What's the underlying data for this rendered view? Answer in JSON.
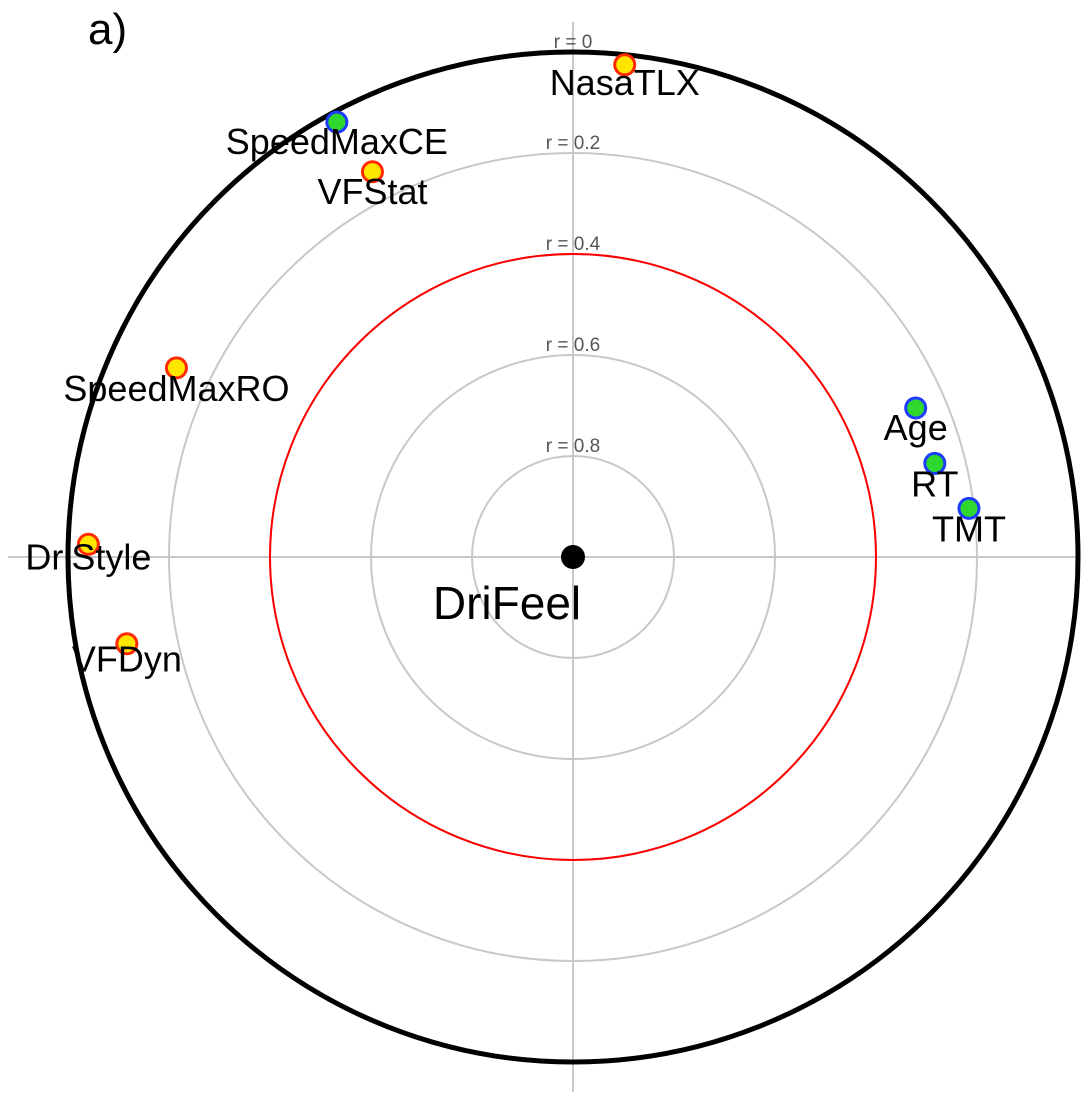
{
  "panel_label": "a)",
  "chart_data": {
    "type": "scatter",
    "center_label": "DriFeel",
    "ring_labels": [
      {
        "r": 0,
        "text": "r = 0"
      },
      {
        "r": 0.2,
        "text": "r = 0.2"
      },
      {
        "r": 0.4,
        "text": "r = 0.4"
      },
      {
        "r": 0.6,
        "text": "r = 0.6"
      },
      {
        "r": 0.8,
        "text": "r = 0.8"
      }
    ],
    "threshold_r": 0.4,
    "points": [
      {
        "label": "NasaTLX",
        "r": 0.02,
        "angle_deg": 84.0,
        "style": "red-yellow"
      },
      {
        "label": "SpeedMaxCE",
        "r": 0.02,
        "angle_deg": 118.5,
        "style": "blue-green"
      },
      {
        "label": "VFStat",
        "r": 0.14,
        "angle_deg": 117.5,
        "style": "red-yellow"
      },
      {
        "label": "Age",
        "r": 0.26,
        "angle_deg": 23.5,
        "style": "blue-green"
      },
      {
        "label": "RT",
        "r": 0.26,
        "angle_deg": 14.5,
        "style": "blue-green"
      },
      {
        "label": "TMT",
        "r": 0.21,
        "angle_deg": 7.0,
        "style": "blue-green"
      },
      {
        "label": "SpeedMaxRO",
        "r": 0.13,
        "angle_deg": 154.5,
        "style": "red-yellow"
      },
      {
        "label": "DriStyle",
        "r": 0.04,
        "angle_deg": 178.5,
        "style": "red-yellow"
      },
      {
        "label": "VFDyn",
        "r": 0.1,
        "angle_deg": 191.0,
        "style": "red-yellow"
      }
    ],
    "colors": {
      "outer_circle": "#000000",
      "grid": "#c8c8c8",
      "threshold": "#ff0000",
      "ring_label": "#555555",
      "red_yellow_edge": "#ff2a00",
      "red_yellow_fill": "#ffe600",
      "blue_green_edge": "#1e3cff",
      "blue_green_fill": "#2ed82e",
      "center_dot": "#000000"
    }
  }
}
